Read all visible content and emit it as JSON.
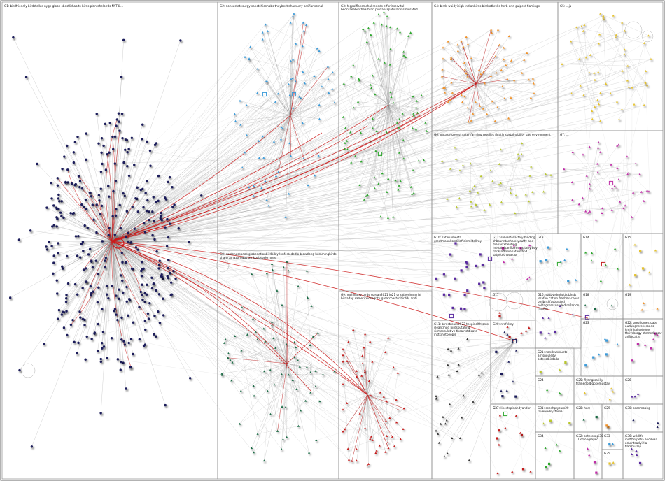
{
  "groups": [
    {
      "id": "G1",
      "label": "G1: birdfriendly birdstellus nyge globe sbestlithabits birds plantshelbirds NYT©... audemgustowsspatthishelping",
      "color": "#1b1f5a"
    },
    {
      "id": "G2",
      "label": "G2: nonsustatesurgy sanctshicnhabs thoybesttshamurry artifianscrnal audublansuestely",
      "color": "#3a9ad9"
    },
    {
      "id": "G3",
      "label": "G3: higpolflansmshal rededs efforfaservital beocsaeaGinthearbton puldansspatuilans sirvssated neBuildtbbam",
      "color": "#2fa82f"
    },
    {
      "id": "G4",
      "label": "G4: birds waidyinigh indianbirds birdsathrelis herb and guipeld flamings bloomstsadegirdes jelazimer",
      "color": "#f0922b"
    },
    {
      "id": "G5",
      "label": "G5: ...ja",
      "color": "#e5c22e"
    },
    {
      "id": "G6",
      "label": "G6: nacasetgeesst sater farming reselies floatly sustainability uae environment wildlife trump",
      "color": "#b9c72e"
    },
    {
      "id": "G7",
      "label": "G7: ...",
      "color": "#c02fa8"
    },
    {
      "id": "G8",
      "label": "G8: somenossbdas globenationbirdsday lonfertodedlo blowtlong hummingbirds sharp amazon wayfair koobsgolo none",
      "color": "#1a6b45"
    },
    {
      "id": "G9",
      "label": "G9: mollinatry birds sorean2021 in21 greatherinaterial birdaday sameritxiosegritu greatcoastsr birdds andi",
      "color": "#c41d1d"
    },
    {
      "id": "G10",
      "label": "G10: sateruimesta greatmaknlismtillaffeinmlitellray nonsustatesurgy",
      "color": "#5a2aa0"
    },
    {
      "id": "G11",
      "label": "G11: birdstream2023 thepinalthtstus sleantmud birdsoutating sirmasculative theainstdicate instsinetpeople birdwatwitterbasebasic sessisptitsarals",
      "color": "#333333"
    }
  ],
  "small_groups": [
    {
      "id": "G12",
      "label": "G12: sulvestseastely binding shbsanntanhalesyeutty and manasteflenting menatelsanfibirds asttahy bay flankindsmiehaters and satpstotnosaidor"
    },
    {
      "id": "G13",
      "label": "G13"
    },
    {
      "id": "G14",
      "label": "G14"
    },
    {
      "id": "G15",
      "label": "G15"
    },
    {
      "id": "G16",
      "label": "G16: stttbyrdmhutts binds issafon cation frashmachess binibird fastsasted soldagsssssdseded reflacion frasfon"
    },
    {
      "id": "G17",
      "label": "G17"
    },
    {
      "id": "G18",
      "label": "G18"
    },
    {
      "id": "G19",
      "label": "G19"
    },
    {
      "id": "G20",
      "label": "G20: nrefelmy"
    },
    {
      "id": "G21",
      "label": "G21: nandsvnmuets arrisnouledy astesstbirdsda"
    },
    {
      "id": "G22",
      "label": "G22: prestiomestgate audubgnsrseeroads kmlmhailsetroger thriveblogy stemedupsar ariftecatte"
    },
    {
      "id": "G23",
      "label": "G23"
    },
    {
      "id": "G24",
      "label": "G24"
    },
    {
      "id": "G25",
      "label": "G25: flyangrsatilly frainedbilbgpsemustay"
    },
    {
      "id": "G26",
      "label": "G26"
    },
    {
      "id": "G27",
      "label": "G27"
    },
    {
      "id": "G28",
      "label": "G28: hart"
    },
    {
      "id": "G29",
      "label": "G29"
    },
    {
      "id": "G30",
      "label": "G30: seanmoahg"
    },
    {
      "id": "G31",
      "label": "G31: seeshptycam20 rovewedsystema"
    },
    {
      "id": "G32",
      "label": "G32: sethsssapi30 TTRmongrayed"
    },
    {
      "id": "G33",
      "label": "G33"
    },
    {
      "id": "G34",
      "label": "G34"
    },
    {
      "id": "G35",
      "label": "G35"
    },
    {
      "id": "G36",
      "label": "G36: wildlife indtifisspeba audibian amentsatlyirlla flamhuslep"
    },
    {
      "id": "G37",
      "label": "G37: linestspinahdyandor"
    }
  ]
}
